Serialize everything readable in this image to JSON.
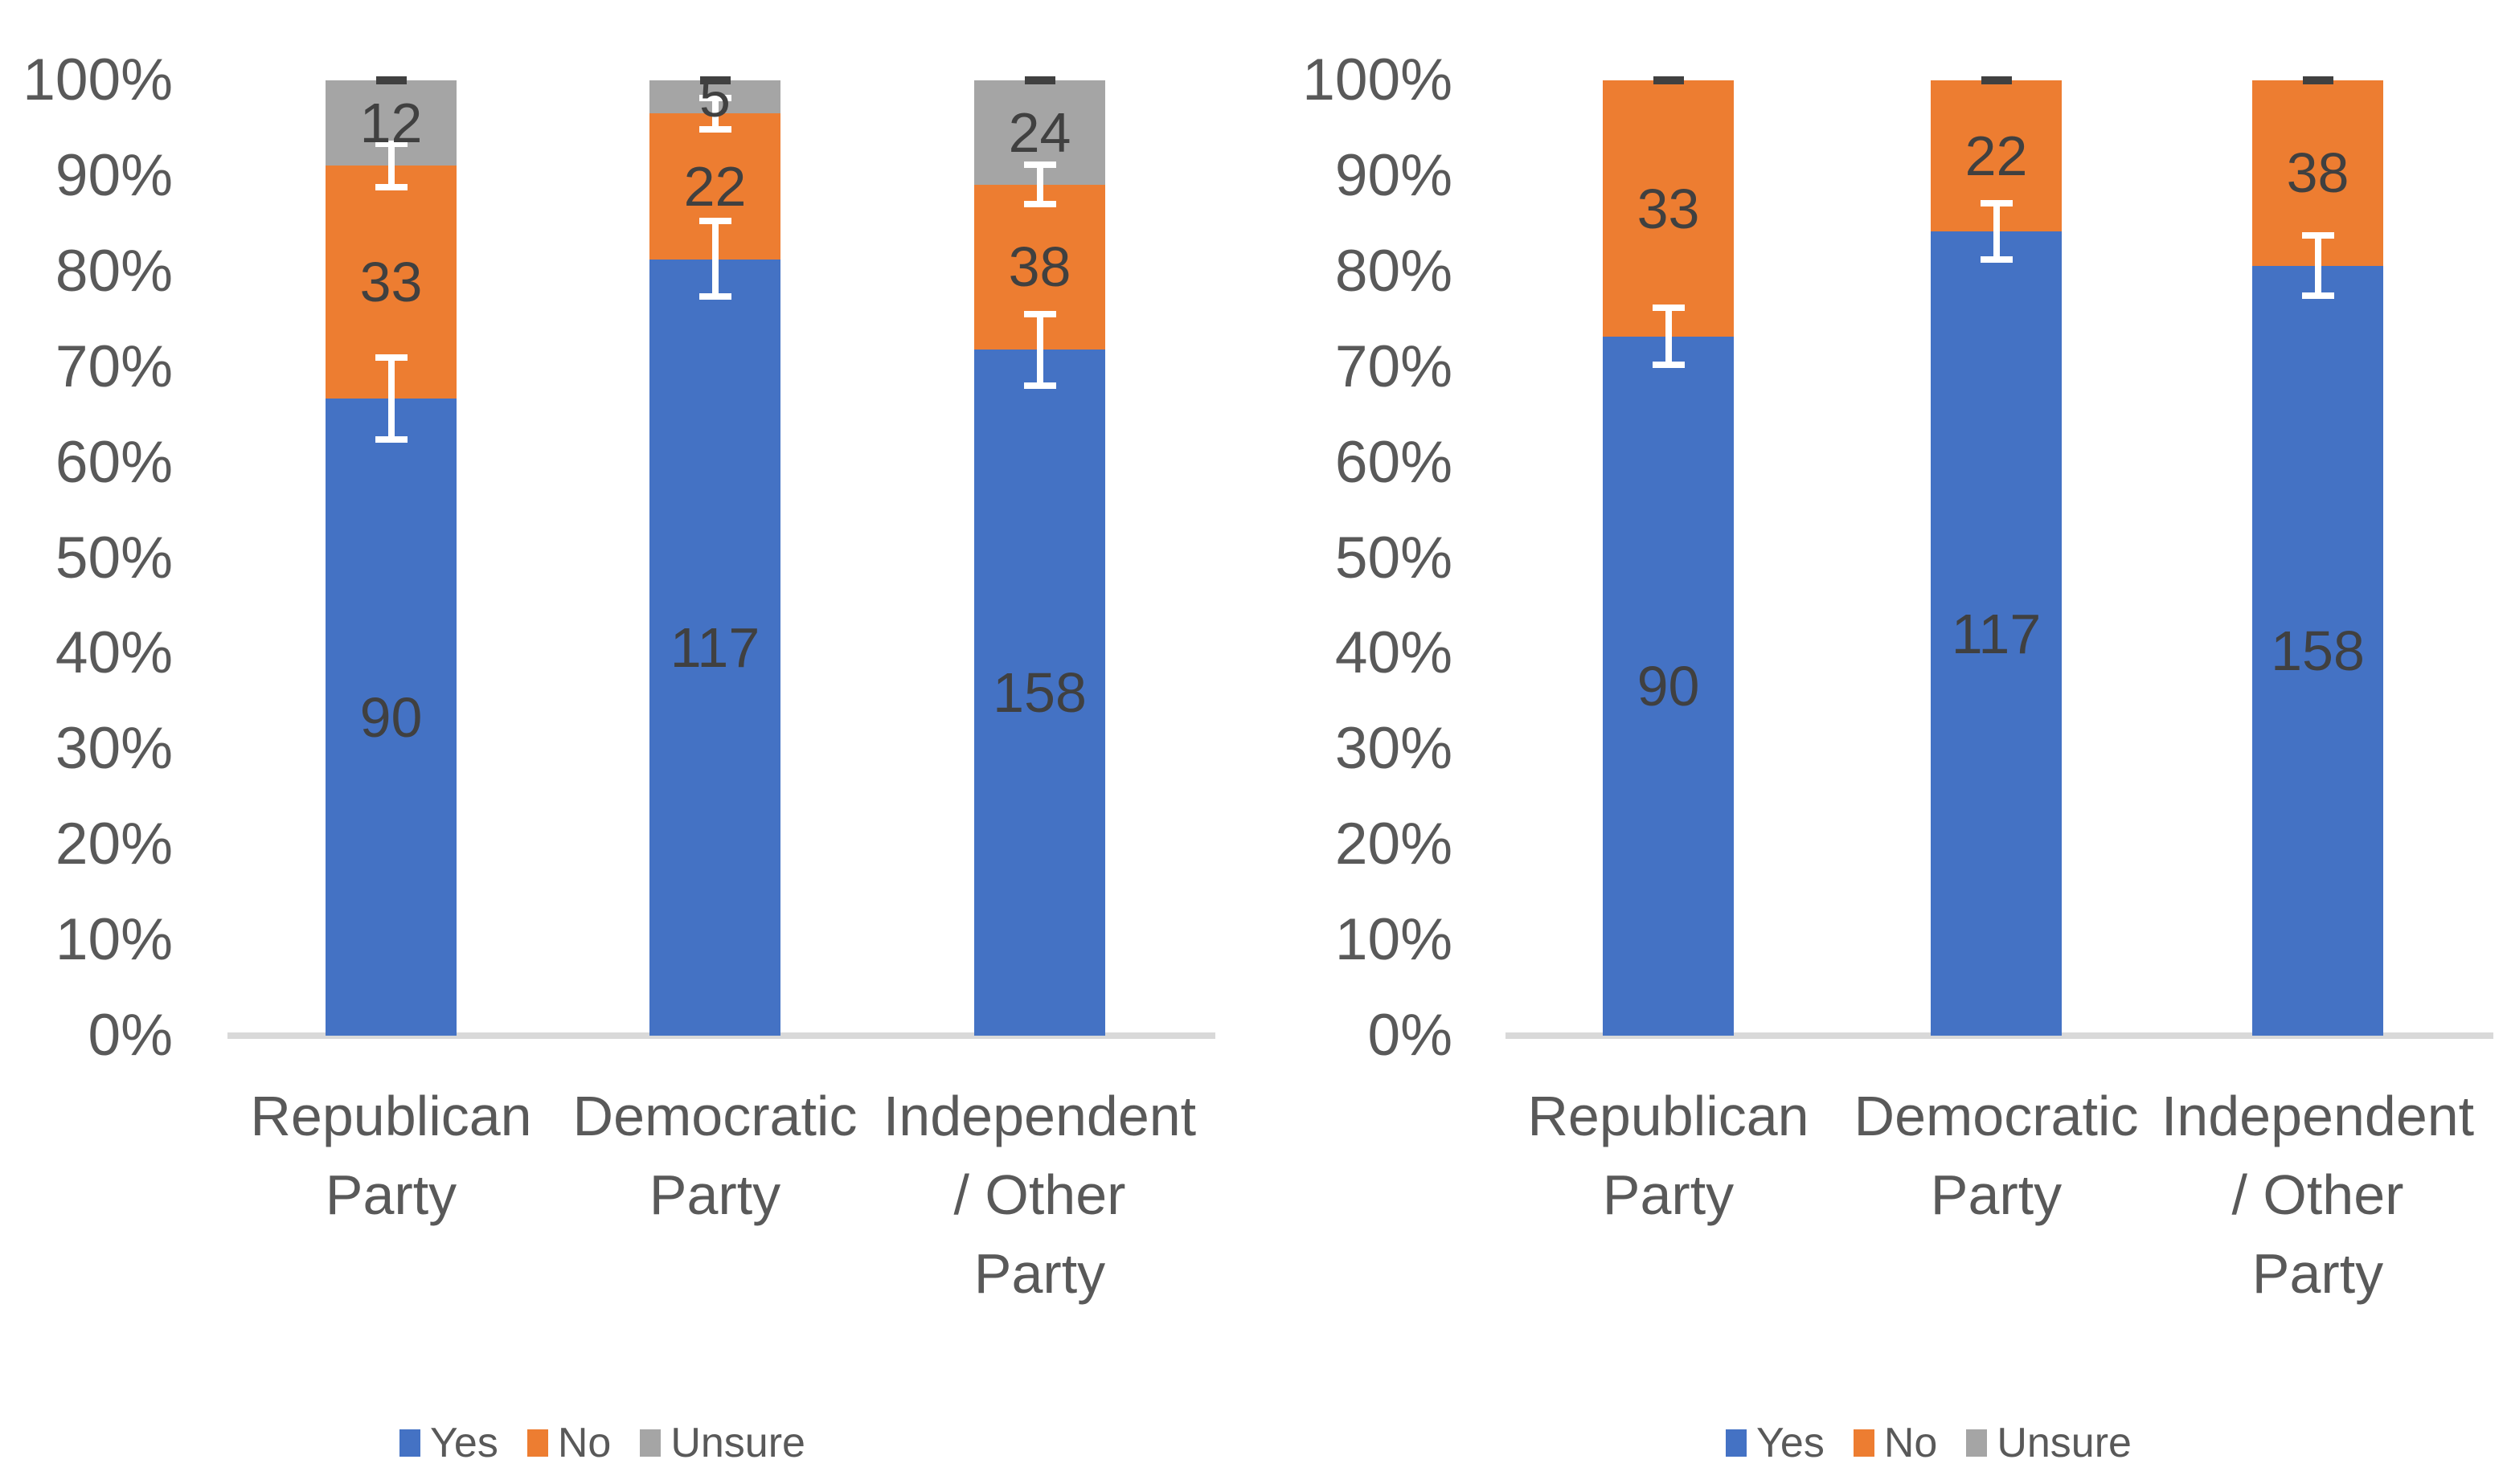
{
  "figure": {
    "description": "Two 100% stacked column charts of survey responses (Yes / No / Unsure) by political party; left chart includes Unsure responses, right chart excludes them",
    "background": "#ffffff"
  },
  "colors": {
    "yes": "#4472C4",
    "no": "#ED7D31",
    "unsure": "#A5A5A5",
    "axis_line": "#D9D9D9",
    "axis_text": "#595959",
    "data_label_text": "#404040",
    "error_bar": "#FFFFFF",
    "top_dash": "#404040"
  },
  "y_axis": {
    "ticks": [
      "100%",
      "90%",
      "80%",
      "70%",
      "60%",
      "50%",
      "40%",
      "30%",
      "20%",
      "10%",
      "0%"
    ]
  },
  "legend": {
    "items": [
      {
        "label": "Yes",
        "color_key": "yes"
      },
      {
        "label": "No",
        "color_key": "no"
      },
      {
        "label": "Unsure",
        "color_key": "unsure"
      }
    ]
  },
  "chart_data": [
    {
      "id": "stacked-with-unsure",
      "type": "bar",
      "stacking": "percent",
      "categories": [
        "Republican Party",
        "Democratic Party",
        "Independent / Other Party"
      ],
      "category_label_lines": [
        [
          "Republican",
          "Party"
        ],
        [
          "Democratic",
          "Party"
        ],
        [
          "Independent",
          "/ Other",
          "Party"
        ]
      ],
      "series": [
        {
          "name": "Yes",
          "color_key": "yes",
          "values": [
            90,
            117,
            158
          ]
        },
        {
          "name": "No",
          "color_key": "no",
          "values": [
            33,
            22,
            38
          ]
        },
        {
          "name": "Unsure",
          "color_key": "unsure",
          "values": [
            12,
            5,
            24
          ]
        }
      ],
      "segment_percentages": {
        "Yes": [
          66.7,
          81.3,
          71.8
        ],
        "No": [
          24.4,
          15.3,
          17.3
        ],
        "Unsure": [
          8.9,
          3.5,
          10.9
        ]
      },
      "error_bars": [
        [
          {
            "center_pct": 66.7,
            "delta_pct": 4.6
          },
          {
            "center_pct": 91.1,
            "delta_pct": 2.6
          }
        ],
        [
          {
            "center_pct": 81.3,
            "delta_pct": 4.3
          },
          {
            "center_pct": 96.5,
            "delta_pct": 2.0
          }
        ],
        [
          {
            "center_pct": 71.8,
            "delta_pct": 4.1
          },
          {
            "center_pct": 89.1,
            "delta_pct": 2.4
          }
        ]
      ],
      "top_dash_pct": 100,
      "ylim": [
        0,
        100
      ],
      "gridlines": false,
      "legend_position": "bottom"
    },
    {
      "id": "stacked-excluding-unsure",
      "type": "bar",
      "stacking": "percent",
      "categories": [
        "Republican Party",
        "Democratic Party",
        "Independent / Other Party"
      ],
      "category_label_lines": [
        [
          "Republican",
          "Party"
        ],
        [
          "Democratic",
          "Party"
        ],
        [
          "Independent",
          "/ Other",
          "Party"
        ]
      ],
      "series": [
        {
          "name": "Yes",
          "color_key": "yes",
          "values": [
            90,
            117,
            158
          ]
        },
        {
          "name": "No",
          "color_key": "no",
          "values": [
            33,
            22,
            38
          ]
        },
        {
          "name": "Unsure",
          "color_key": "unsure",
          "values": [
            0,
            0,
            0
          ]
        }
      ],
      "segment_percentages": {
        "Yes": [
          73.2,
          84.2,
          80.6
        ],
        "No": [
          26.8,
          15.8,
          19.4
        ]
      },
      "error_bars": [
        [
          {
            "center_pct": 73.2,
            "delta_pct": 3.3
          }
        ],
        [
          {
            "center_pct": 84.2,
            "delta_pct": 3.3
          }
        ],
        [
          {
            "center_pct": 80.6,
            "delta_pct": 3.5
          }
        ]
      ],
      "top_dash_pct": 100,
      "ylim": [
        0,
        100
      ],
      "gridlines": false,
      "legend_position": "bottom"
    }
  ]
}
